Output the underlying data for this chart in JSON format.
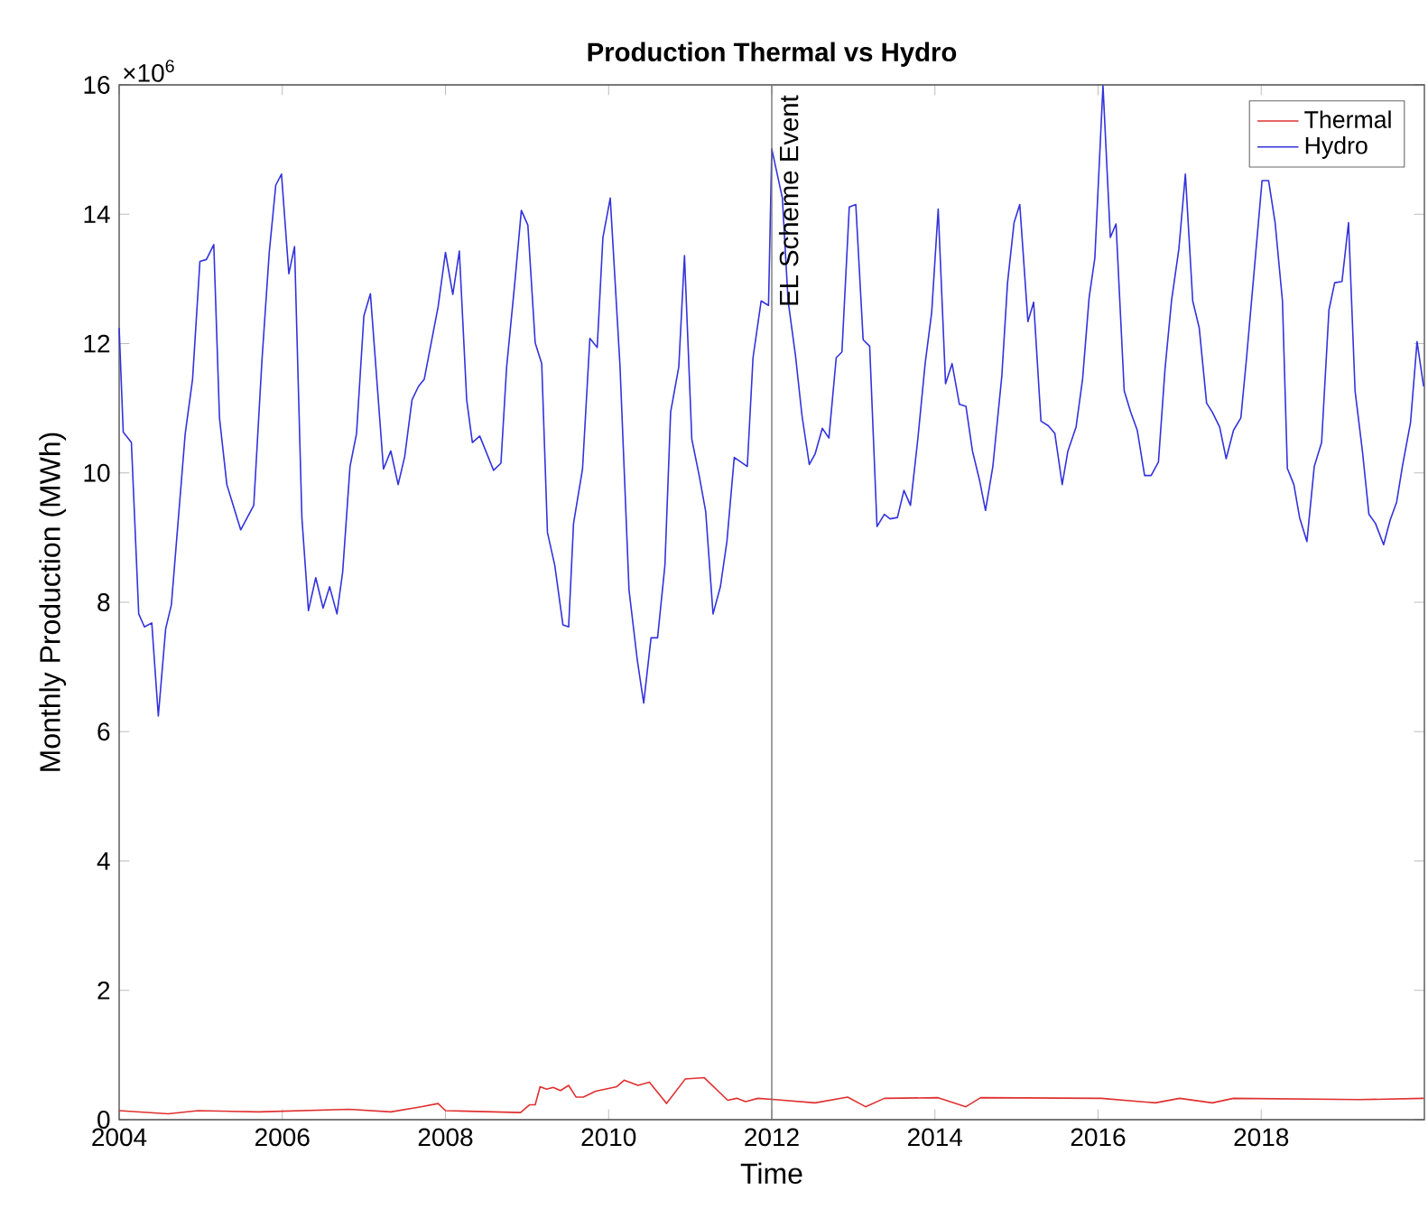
{
  "chart_data": {
    "type": "line",
    "title": "Production Thermal vs Hydro",
    "xlabel": "Time",
    "ylabel": "Monthly Production (MWh)",
    "annotations": [
      "×10$^{6}$"
    ],
    "xlim": [
      2004,
      2020
    ],
    "xticks": [
      2004,
      2006,
      2008,
      2010,
      2012,
      2014,
      2016,
      2018
    ],
    "ylim": [
      0,
      16
    ],
    "yticks": [
      0,
      2,
      4,
      6,
      8,
      10,
      12,
      14,
      16
    ],
    "grid": false,
    "legend": "top right",
    "ref_lines": [
      {
        "axis": "x",
        "value": 2012,
        "label": "EL Scheme Event",
        "color": "#707070"
      }
    ],
    "series": [
      {
        "name": "Thermal",
        "color": "#e03030",
        "x": [
          2004.0,
          2004.6,
          2004.97,
          2005.71,
          2006.82,
          2007.33,
          2007.7,
          2007.91,
          2008.0,
          2008.92,
          2009.03,
          2009.1,
          2009.16,
          2009.24,
          2009.32,
          2009.41,
          2009.51,
          2009.6,
          2009.69,
          2009.84,
          2010.1,
          2010.19,
          2010.36,
          2010.5,
          2010.71,
          2010.94,
          2011.17,
          2011.46,
          2011.57,
          2011.68,
          2011.83,
          2012.04,
          2012.53,
          2012.93,
          2013.15,
          2013.38,
          2014.04,
          2014.38,
          2014.56,
          2016.04,
          2016.7,
          2017.0,
          2017.4,
          2017.66,
          2019.21,
          2019.99
        ],
        "values": [
          0.14,
          0.09,
          0.14,
          0.12,
          0.16,
          0.12,
          0.2,
          0.25,
          0.14,
          0.11,
          0.23,
          0.23,
          0.51,
          0.47,
          0.5,
          0.45,
          0.53,
          0.35,
          0.35,
          0.44,
          0.51,
          0.61,
          0.53,
          0.58,
          0.25,
          0.63,
          0.65,
          0.3,
          0.33,
          0.28,
          0.33,
          0.31,
          0.26,
          0.35,
          0.2,
          0.33,
          0.34,
          0.2,
          0.34,
          0.33,
          0.26,
          0.33,
          0.26,
          0.33,
          0.31,
          0.33
        ]
      },
      {
        "name": "Hydro",
        "color": "#3333dd",
        "x": [
          2004.0,
          2004.05,
          2004.15,
          2004.24,
          2004.31,
          2004.4,
          2004.48,
          2004.57,
          2004.64,
          2004.81,
          2004.9,
          2004.99,
          2005.07,
          2005.16,
          2005.23,
          2005.32,
          2005.49,
          2005.65,
          2005.75,
          2005.84,
          2005.92,
          2005.99,
          2006.08,
          2006.15,
          2006.24,
          2006.32,
          2006.41,
          2006.5,
          2006.58,
          2006.67,
          2006.74,
          2006.83,
          2006.91,
          2007.0,
          2007.08,
          2007.24,
          2007.33,
          2007.42,
          2007.5,
          2007.59,
          2007.67,
          2007.74,
          2007.91,
          2008.0,
          2008.09,
          2008.17,
          2008.26,
          2008.33,
          2008.42,
          2008.59,
          2008.68,
          2008.75,
          2008.85,
          2008.93,
          2009.01,
          2009.1,
          2009.18,
          2009.25,
          2009.34,
          2009.44,
          2009.51,
          2009.57,
          2009.68,
          2009.77,
          2009.86,
          2009.93,
          2010.02,
          2010.14,
          2010.25,
          2010.35,
          2010.43,
          2010.52,
          2010.6,
          2010.69,
          2010.76,
          2010.86,
          2010.93,
          2011.02,
          2011.11,
          2011.19,
          2011.28,
          2011.37,
          2011.45,
          2011.54,
          2011.7,
          2011.77,
          2011.87,
          2011.96,
          2012.0,
          2012.13,
          2012.2,
          2012.29,
          2012.37,
          2012.46,
          2012.53,
          2012.62,
          2012.7,
          2012.79,
          2012.86,
          2012.95,
          2013.03,
          2013.12,
          2013.2,
          2013.29,
          2013.38,
          2013.45,
          2013.54,
          2013.62,
          2013.7,
          2013.79,
          2013.88,
          2013.96,
          2014.04,
          2014.13,
          2014.21,
          2014.3,
          2014.38,
          2014.46,
          2014.55,
          2014.62,
          2014.71,
          2014.82,
          2014.89,
          2014.97,
          2015.04,
          2015.14,
          2015.21,
          2015.3,
          2015.39,
          2015.47,
          2015.56,
          2015.63,
          2015.73,
          2015.81,
          2015.89,
          2015.96,
          2016.06,
          2016.15,
          2016.22,
          2016.32,
          2016.4,
          2016.48,
          2016.57,
          2016.65,
          2016.74,
          2016.82,
          2016.9,
          2016.99,
          2017.07,
          2017.16,
          2017.24,
          2017.33,
          2017.4,
          2017.49,
          2017.57,
          2017.66,
          2017.75,
          2017.82,
          2017.92,
          2018.01,
          2018.09,
          2018.17,
          2018.26,
          2018.32,
          2018.4,
          2018.47,
          2018.56,
          2018.65,
          2018.74,
          2018.83,
          2018.9,
          2018.99,
          2019.07,
          2019.15,
          2019.24,
          2019.32,
          2019.4,
          2019.5,
          2019.58,
          2019.66,
          2019.73,
          2019.83,
          2019.91,
          2019.99
        ],
        "values": [
          12.24,
          10.63,
          10.47,
          7.82,
          7.62,
          7.68,
          6.24,
          7.59,
          7.96,
          10.61,
          11.45,
          13.27,
          13.3,
          13.53,
          10.85,
          9.82,
          9.12,
          9.5,
          11.73,
          13.41,
          14.45,
          14.62,
          13.08,
          13.5,
          9.31,
          7.87,
          8.38,
          7.91,
          8.24,
          7.82,
          8.47,
          10.1,
          10.61,
          12.43,
          12.77,
          10.06,
          10.34,
          9.82,
          10.25,
          11.13,
          11.34,
          11.45,
          12.57,
          13.41,
          12.76,
          13.43,
          11.13,
          10.47,
          10.57,
          10.04,
          10.15,
          11.64,
          12.94,
          14.06,
          13.83,
          12.01,
          11.69,
          9.08,
          8.57,
          7.65,
          7.62,
          9.22,
          10.06,
          12.08,
          11.94,
          13.64,
          14.25,
          11.64,
          8.19,
          7.12,
          6.44,
          7.45,
          7.45,
          8.57,
          10.94,
          11.64,
          13.36,
          10.52,
          9.96,
          9.4,
          7.82,
          8.24,
          8.94,
          10.24,
          10.1,
          11.78,
          12.66,
          12.59,
          15.01,
          14.25,
          12.66,
          11.82,
          10.89,
          10.13,
          10.29,
          10.69,
          10.54,
          11.78,
          11.87,
          14.11,
          14.15,
          12.06,
          11.96,
          9.17,
          9.36,
          9.29,
          9.31,
          9.73,
          9.5,
          10.52,
          11.69,
          12.48,
          14.08,
          11.38,
          11.69,
          11.06,
          11.03,
          10.34,
          9.87,
          9.42,
          10.1,
          11.5,
          12.94,
          13.87,
          14.15,
          12.34,
          12.64,
          10.8,
          10.73,
          10.61,
          9.82,
          10.34,
          10.71,
          11.45,
          12.71,
          13.32,
          15.99,
          13.64,
          13.85,
          11.27,
          10.94,
          10.66,
          9.96,
          9.96,
          10.17,
          11.6,
          12.66,
          13.46,
          14.62,
          12.66,
          12.24,
          11.08,
          10.94,
          10.71,
          10.22,
          10.66,
          10.85,
          11.78,
          13.22,
          14.52,
          14.52,
          13.87,
          12.66,
          10.07,
          9.82,
          9.31,
          8.94,
          10.1,
          10.47,
          12.52,
          12.94,
          12.96,
          13.87,
          11.27,
          10.34,
          9.36,
          9.22,
          8.89,
          9.27,
          9.55,
          10.1,
          10.78,
          12.03,
          11.34
        ]
      }
    ]
  }
}
